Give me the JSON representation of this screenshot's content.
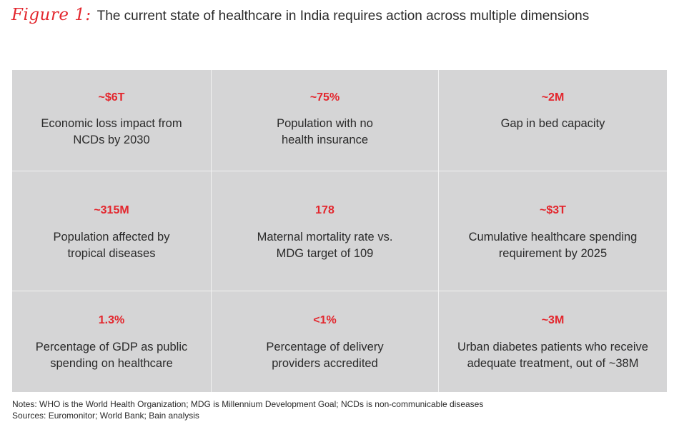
{
  "figure": {
    "label": "Figure 1:",
    "title": "The current state of healthcare in India requires action across multiple dimensions"
  },
  "colors": {
    "accent": "#e3262d",
    "grid_background": "#d5d5d6",
    "divider": "#f2f2f2"
  },
  "cells": [
    {
      "stat": "~$6T",
      "line1": "Economic loss impact from",
      "line2": "NCDs by 2030"
    },
    {
      "stat": "~75%",
      "line1": "Population with no",
      "line2": "health insurance"
    },
    {
      "stat": "~2M",
      "line1": "Gap in bed capacity",
      "line2": ""
    },
    {
      "stat": "~315M",
      "line1": "Population affected by",
      "line2": "tropical diseases"
    },
    {
      "stat": "178",
      "line1": "Maternal mortality rate vs.",
      "line2": "MDG target of 109"
    },
    {
      "stat": "~$3T",
      "line1": "Cumulative healthcare spending",
      "line2": "requirement by 2025"
    },
    {
      "stat": "1.3%",
      "line1": "Percentage of GDP as public",
      "line2": "spending on healthcare"
    },
    {
      "stat": "<1%",
      "line1": "Percentage of delivery",
      "line2": "providers accredited"
    },
    {
      "stat": "~3M",
      "line1": "Urban diabetes patients who receive",
      "line2": "adequate treatment, out of ~38M"
    }
  ],
  "notes": {
    "line1": "Notes: WHO is the World Health Organization; MDG is Millennium Development Goal; NCDs is non-communicable diseases",
    "line2": "Sources: Euromonitor; World Bank; Bain analysis"
  }
}
